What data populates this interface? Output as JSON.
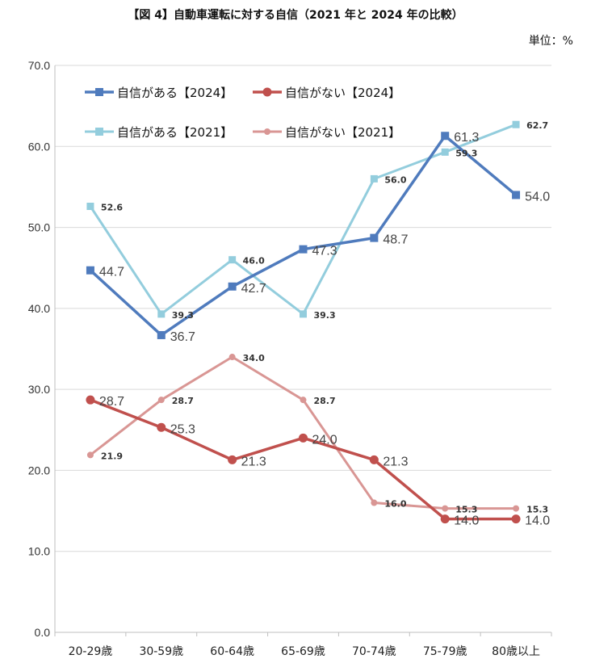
{
  "header": {
    "title": "【図 4】自動車運転に対する自信（2021 年と 2024 年の比較）",
    "unit": "単位：%"
  },
  "chart_data": {
    "type": "line",
    "title": "【図 4】自動車運転に対する自信（2021 年と 2024 年の比較）",
    "unit": "単位：%",
    "categories": [
      "20-29歳",
      "30-59歳",
      "60-64歳",
      "65-69歳",
      "70-74歳",
      "75-79歳",
      "80歳以上"
    ],
    "ylim": [
      0,
      70
    ],
    "yticks": [
      "0.0",
      "10.0",
      "20.0",
      "30.0",
      "40.0",
      "50.0",
      "60.0",
      "70.0"
    ],
    "grid": true,
    "legend_position": "top-left",
    "series": [
      {
        "name": "自信がある【2024】",
        "color": "#4f7bbd",
        "marker": "square",
        "label_style": "large",
        "values": [
          44.7,
          36.7,
          42.7,
          47.3,
          48.7,
          61.3,
          54.0
        ]
      },
      {
        "name": "自信がない【2024】",
        "color": "#c0504d",
        "marker": "circle",
        "label_style": "large",
        "values": [
          28.7,
          25.3,
          21.3,
          24.0,
          21.3,
          14.0,
          14.0
        ]
      },
      {
        "name": "自信がある【2021】",
        "color": "#93cddd",
        "marker": "square",
        "label_style": "small",
        "values": [
          52.6,
          39.3,
          46.0,
          39.3,
          56.0,
          59.3,
          62.7
        ]
      },
      {
        "name": "自信がない【2021】",
        "color": "#d99694",
        "marker": "circle",
        "label_style": "small",
        "values": [
          21.9,
          28.7,
          34.0,
          28.7,
          16.0,
          15.3,
          15.3
        ]
      }
    ]
  }
}
